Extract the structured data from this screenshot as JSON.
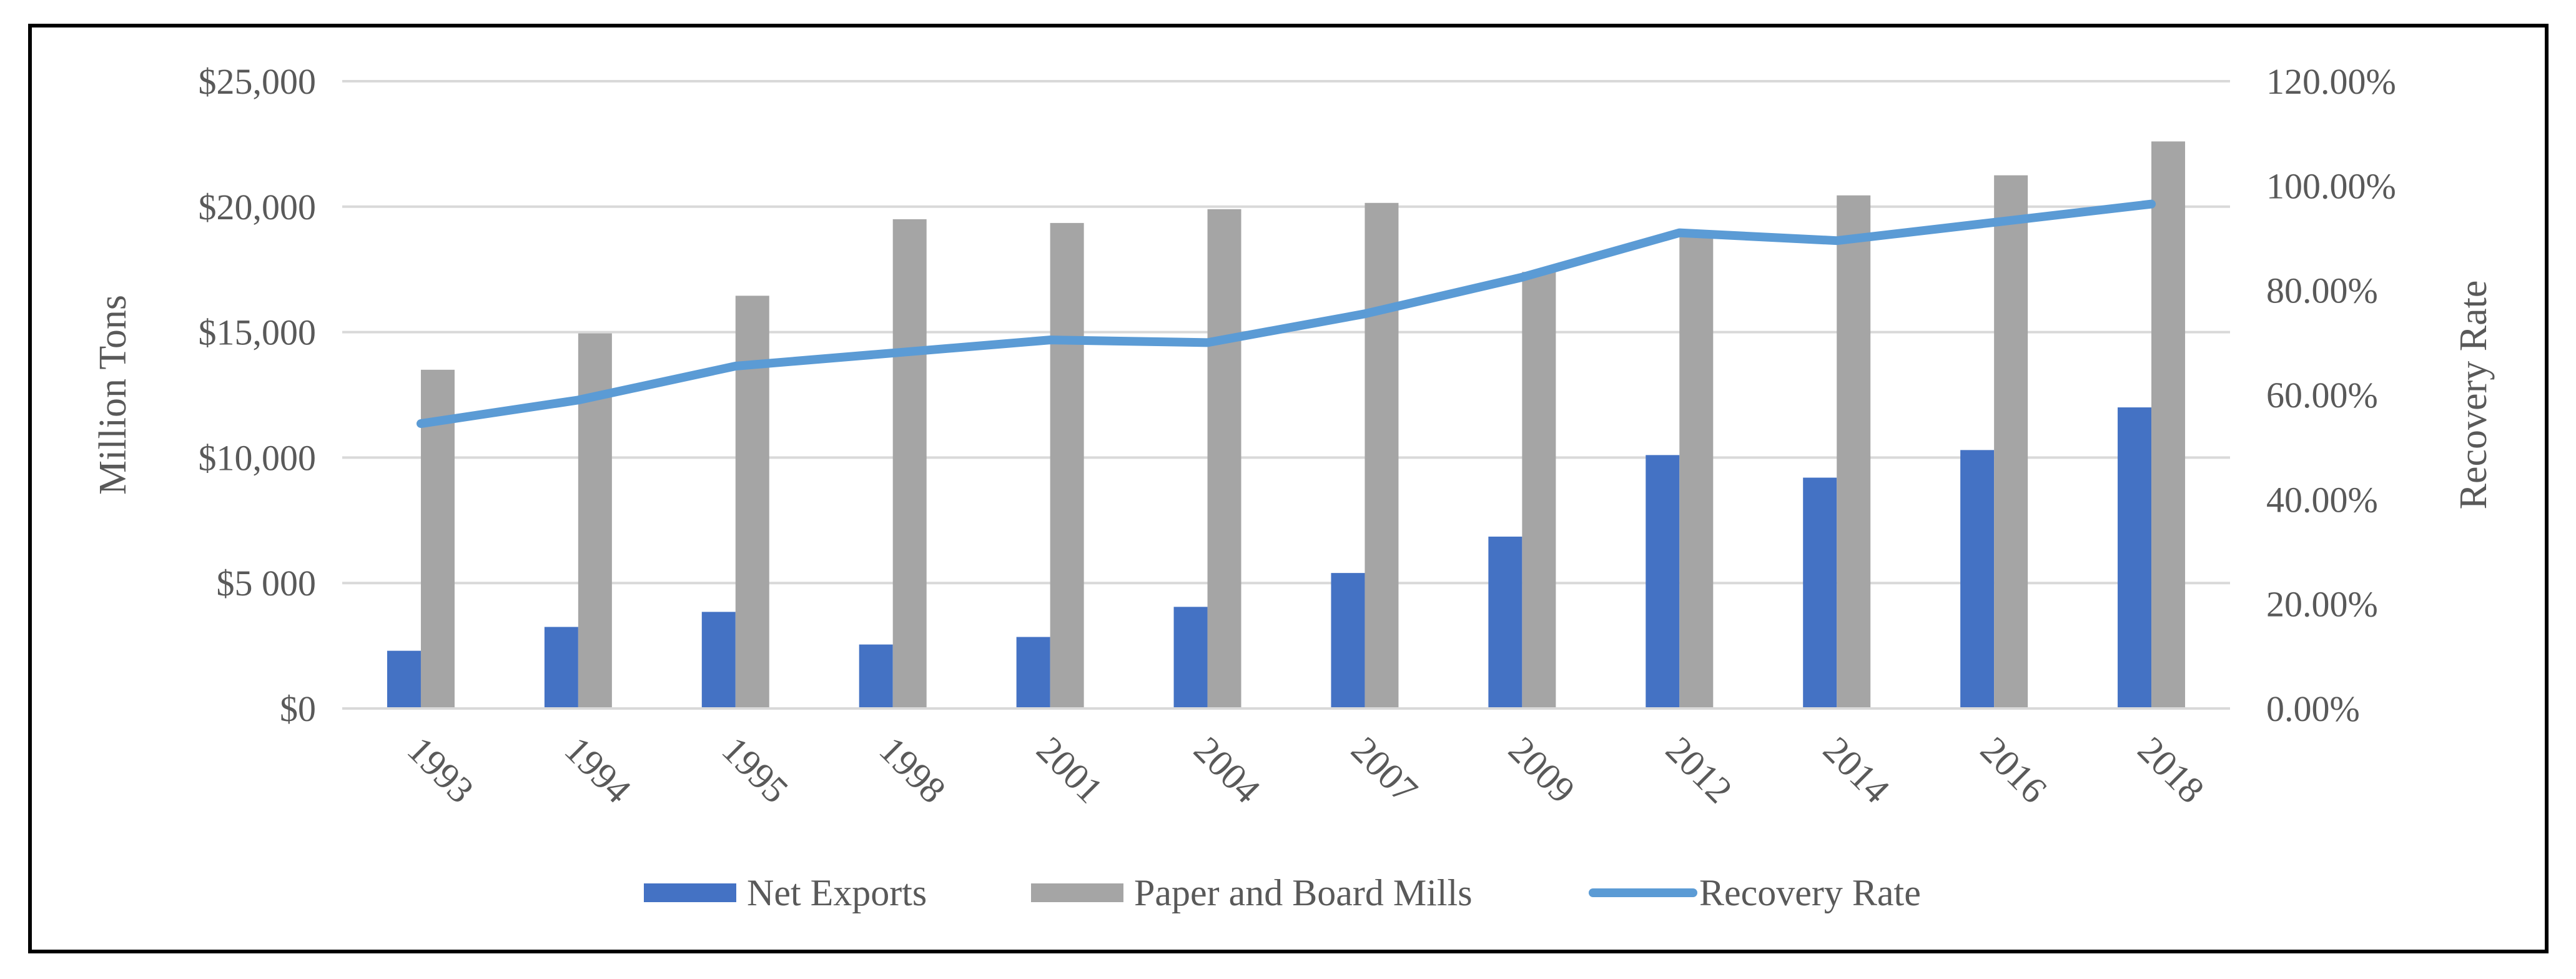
{
  "chart_data": {
    "type": "bar",
    "categories": [
      "1993",
      "1994",
      "1995",
      "1998",
      "2001",
      "2004",
      "2007",
      "2009",
      "2012",
      "2014",
      "2016",
      "2018"
    ],
    "series": [
      {
        "name": "Net Exports",
        "kind": "bar",
        "axis": "left",
        "color": "#4472c4",
        "values": [
          2300,
          3250,
          3850,
          2550,
          2850,
          4050,
          5400,
          6850,
          10100,
          9200,
          10300,
          12000
        ]
      },
      {
        "name": "Paper and Board Mills",
        "kind": "bar",
        "axis": "left",
        "color": "#a5a5a5",
        "values": [
          13500,
          14950,
          16450,
          19500,
          19350,
          19900,
          20150,
          17400,
          18900,
          20450,
          21250,
          22600
        ]
      },
      {
        "name": "Recovery Rate",
        "kind": "line",
        "axis": "right",
        "color": "#5b9bd5",
        "values": [
          54.5,
          59.0,
          65.5,
          68.0,
          70.5,
          70.0,
          75.5,
          82.5,
          91.0,
          89.5,
          93.0,
          96.5
        ]
      }
    ],
    "ylabel": "Million Tons",
    "y2label": "Recovery Rate",
    "ylim": [
      0,
      25000
    ],
    "y2lim": [
      0,
      120
    ],
    "yticks": [
      "$0",
      "$5 000",
      "$10,000",
      "$15,000",
      "$20,000",
      "$25,000"
    ],
    "y2ticks": [
      "0.00%",
      "20.00%",
      "40.00%",
      "60.00%",
      "80.00%",
      "100.00%",
      "120.00%"
    ],
    "grid": true,
    "legend_position": "bottom"
  },
  "colors": {
    "gridline": "#d9d9d9",
    "axis_text": "#595959",
    "frame": "#000000"
  }
}
